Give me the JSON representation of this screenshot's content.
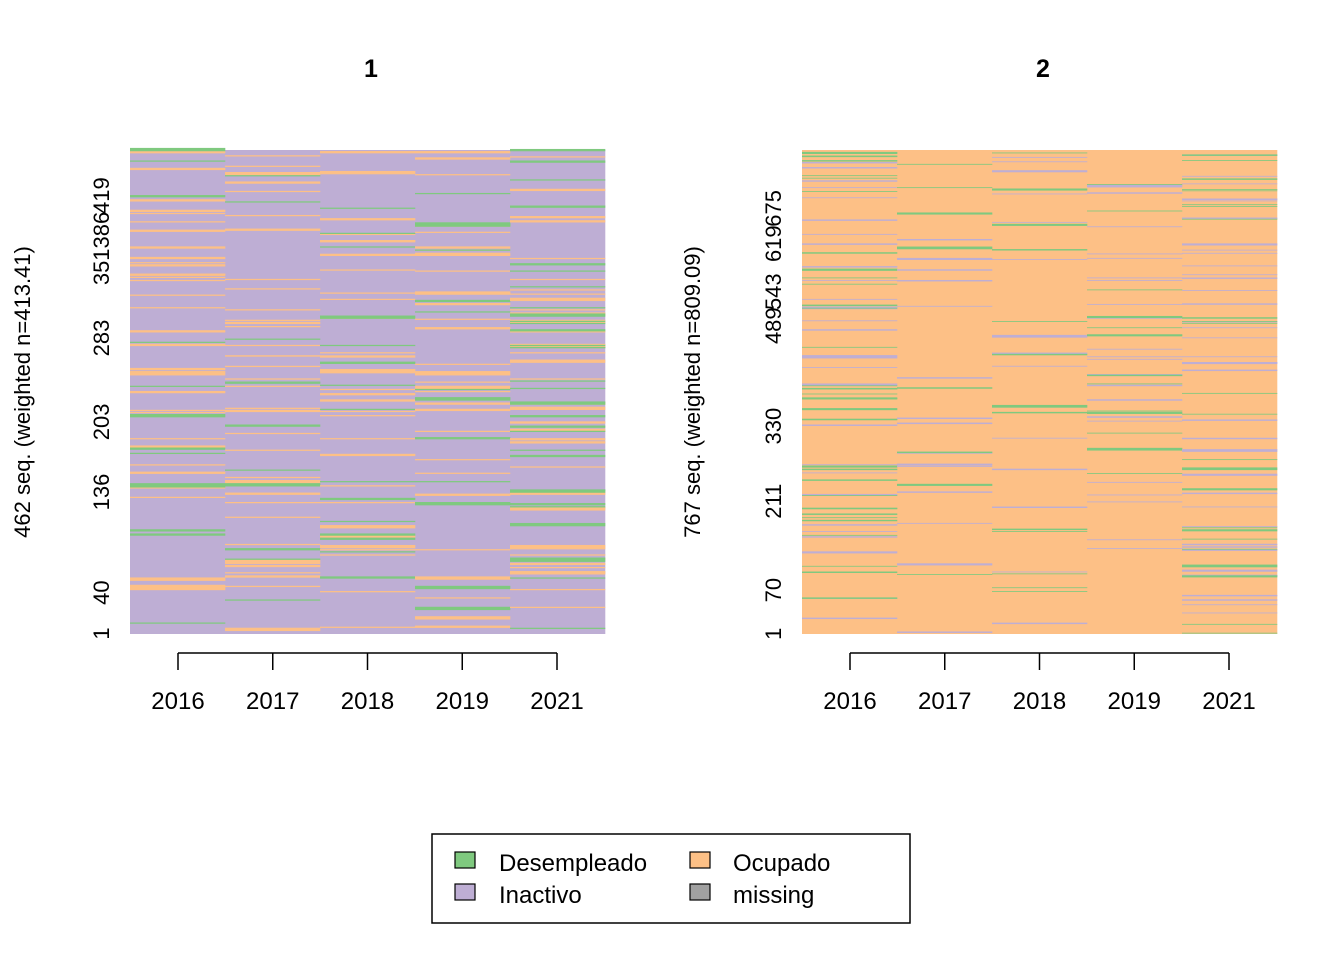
{
  "chart_data": [
    {
      "type": "heatmap",
      "subtype": "sequence-index-plot",
      "title": "1",
      "ylabel": "462 seq. (weighted n=413.41)",
      "n_sequences": 462,
      "weighted_n": 413.41,
      "x_tick_labels": [
        "2016",
        "2017",
        "2018",
        "2019",
        "2021"
      ],
      "y_tick_labels": [
        "1",
        "40",
        "136",
        "203",
        "283",
        "351",
        "386",
        "419"
      ],
      "dominant_state": "Inactivo",
      "state_shares_estimate": [
        {
          "state": "Inactivo",
          "shares": [
            0.82,
            0.86,
            0.84,
            0.82,
            0.74
          ]
        },
        {
          "state": "Ocupado",
          "shares": [
            0.13,
            0.11,
            0.11,
            0.12,
            0.15
          ]
        },
        {
          "state": "Desempleado",
          "shares": [
            0.05,
            0.03,
            0.05,
            0.06,
            0.11
          ]
        },
        {
          "state": "missing",
          "shares": [
            0,
            0,
            0,
            0,
            0
          ]
        }
      ]
    },
    {
      "type": "heatmap",
      "subtype": "sequence-index-plot",
      "title": "2",
      "ylabel": "767 seq. (weighted n=809.09)",
      "n_sequences": 767,
      "weighted_n": 809.09,
      "x_tick_labels": [
        "2016",
        "2017",
        "2018",
        "2019",
        "2021"
      ],
      "y_tick_labels": [
        "1",
        "70",
        "211",
        "330",
        "489",
        "543",
        "619",
        "675"
      ],
      "dominant_state": "Ocupado",
      "state_shares_estimate": [
        {
          "state": "Ocupado",
          "shares": [
            0.85,
            0.94,
            0.94,
            0.93,
            0.86
          ]
        },
        {
          "state": "Inactivo",
          "shares": [
            0.07,
            0.04,
            0.03,
            0.04,
            0.09
          ]
        },
        {
          "state": "Desempleado",
          "shares": [
            0.08,
            0.02,
            0.03,
            0.03,
            0.05
          ]
        },
        {
          "state": "missing",
          "shares": [
            0,
            0,
            0,
            0,
            0
          ]
        }
      ]
    }
  ],
  "legend": {
    "items": [
      {
        "label": "Desempleado",
        "color": "#7fc97f"
      },
      {
        "label": "Ocupado",
        "color": "#fdc086"
      },
      {
        "label": "Inactivo",
        "color": "#beaed4"
      },
      {
        "label": "missing",
        "color": "#a0a0a0"
      }
    ]
  },
  "colors": {
    "Desempleado": "#7fc97f",
    "Inactivo": "#beaed4",
    "Ocupado": "#fdc086",
    "missing": "#a0a0a0"
  }
}
